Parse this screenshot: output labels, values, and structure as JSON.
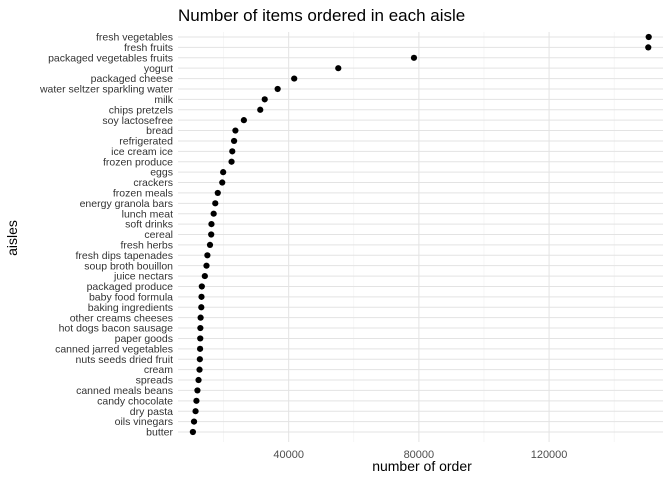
{
  "chart_data": {
    "type": "scatter",
    "title": "Number of items ordered in each aisle",
    "xlabel": "number of order",
    "ylabel": "aisles",
    "xlim": [
      6000,
      155000
    ],
    "x_ticks": [
      40000,
      80000,
      120000
    ],
    "x_tick_labels": [
      "40000",
      "80000",
      "120000"
    ],
    "grid": true,
    "point_color": "#000000",
    "categories": [
      "fresh vegetables",
      "fresh fruits",
      "packaged vegetables fruits",
      "yogurt",
      "packaged cheese",
      "water seltzer sparkling water",
      "milk",
      "chips pretzels",
      "soy lactosefree",
      "bread",
      "refrigerated",
      "ice cream ice",
      "frozen produce",
      "eggs",
      "crackers",
      "frozen meals",
      "energy granola bars",
      "lunch meat",
      "soft drinks",
      "cereal",
      "fresh herbs",
      "fresh dips tapenades",
      "soup broth bouillon",
      "juice nectars",
      "packaged produce",
      "baby food formula",
      "baking ingredients",
      "other creams cheeses",
      "hot dogs bacon sausage",
      "paper goods",
      "canned jarred vegetables",
      "nuts seeds dried fruit",
      "cream",
      "spreads",
      "canned meals beans",
      "candy chocolate",
      "dry pasta",
      "oils vinegars",
      "butter"
    ],
    "values": [
      150609,
      150473,
      78493,
      55240,
      41699,
      36617,
      32644,
      31269,
      26240,
      23635,
      23228,
      22676,
      22453,
      19875,
      19592,
      18221,
      17449,
      16957,
      16279,
      16201,
      15831,
      15028,
      14754,
      14243,
      13320,
      13219,
      13159,
      12946,
      12870,
      12834,
      12784,
      12711,
      12614,
      12311,
      11971,
      11662,
      11395,
      10925,
      10575
    ]
  }
}
